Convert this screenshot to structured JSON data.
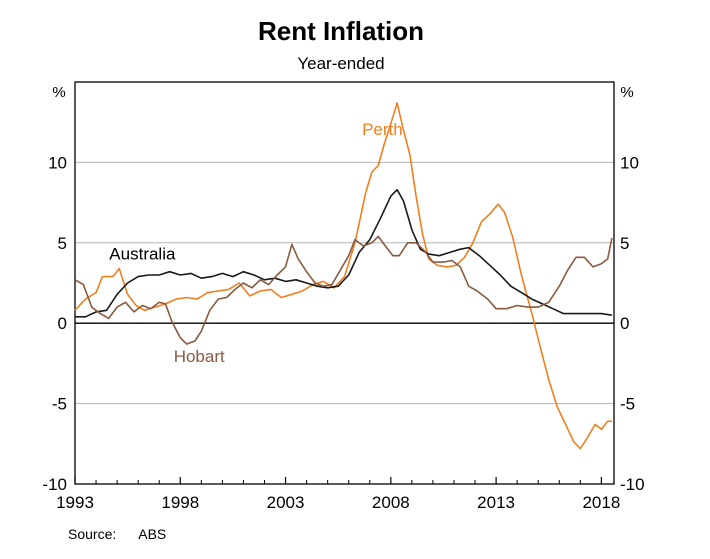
{
  "chart_data": {
    "type": "line",
    "title": "Rent Inflation",
    "subtitle": "Year-ended",
    "ylabel_left": "%",
    "ylabel_right": "%",
    "xlabel": "",
    "xlim": [
      1993,
      2018.6
    ],
    "ylim": [
      -10,
      15
    ],
    "x_ticks": [
      1993,
      1998,
      2003,
      2008,
      2013,
      2018
    ],
    "y_ticks": [
      -10,
      -5,
      0,
      5,
      10
    ],
    "grid": true,
    "source_label": "Source:",
    "source_value": "ABS",
    "series": [
      {
        "name": "Perth",
        "color": "#f07f20",
        "label_at": [
          2007.6,
          11.7
        ],
        "points": [
          [
            1993,
            0.8
          ],
          [
            1993.5,
            1.5
          ],
          [
            1994,
            1.9
          ],
          [
            1994.3,
            2.9
          ],
          [
            1994.8,
            2.9
          ],
          [
            1995.1,
            3.4
          ],
          [
            1995.5,
            1.8
          ],
          [
            1995.9,
            1.1
          ],
          [
            1996.3,
            0.8
          ],
          [
            1996.8,
            1.0
          ],
          [
            1997.3,
            1.2
          ],
          [
            1997.8,
            1.5
          ],
          [
            1998.3,
            1.6
          ],
          [
            1998.8,
            1.5
          ],
          [
            1999.3,
            1.9
          ],
          [
            1999.8,
            2.0
          ],
          [
            2000.3,
            2.1
          ],
          [
            2000.8,
            2.5
          ],
          [
            2001.3,
            1.7
          ],
          [
            2001.8,
            2.0
          ],
          [
            2002.3,
            2.1
          ],
          [
            2002.8,
            1.6
          ],
          [
            2003.3,
            1.8
          ],
          [
            2003.8,
            2.0
          ],
          [
            2004.3,
            2.4
          ],
          [
            2004.8,
            2.6
          ],
          [
            2005.3,
            2.2
          ],
          [
            2005.8,
            2.9
          ],
          [
            2006.3,
            5.0
          ],
          [
            2006.8,
            8.1
          ],
          [
            2007.1,
            9.4
          ],
          [
            2007.4,
            9.8
          ],
          [
            2007.7,
            11.2
          ],
          [
            2008.0,
            12.4
          ],
          [
            2008.3,
            13.7
          ],
          [
            2008.6,
            12.0
          ],
          [
            2008.9,
            10.5
          ],
          [
            2009.2,
            7.9
          ],
          [
            2009.5,
            5.6
          ],
          [
            2009.8,
            4.0
          ],
          [
            2010.2,
            3.6
          ],
          [
            2010.7,
            3.5
          ],
          [
            2011.1,
            3.6
          ],
          [
            2011.5,
            4.1
          ],
          [
            2011.9,
            5.0
          ],
          [
            2012.3,
            6.3
          ],
          [
            2012.7,
            6.8
          ],
          [
            2013.1,
            7.4
          ],
          [
            2013.4,
            6.9
          ],
          [
            2013.8,
            5.3
          ],
          [
            2014.2,
            3.0
          ],
          [
            2014.7,
            0.6
          ],
          [
            2015.1,
            -1.5
          ],
          [
            2015.5,
            -3.5
          ],
          [
            2015.9,
            -5.2
          ],
          [
            2016.3,
            -6.3
          ],
          [
            2016.7,
            -7.4
          ],
          [
            2017.0,
            -7.8
          ],
          [
            2017.3,
            -7.2
          ],
          [
            2017.7,
            -6.3
          ],
          [
            2018.0,
            -6.6
          ],
          [
            2018.3,
            -6.1
          ],
          [
            2018.5,
            -6.1
          ]
        ]
      },
      {
        "name": "Australia",
        "color": "#1a1a1a",
        "label_at": [
          1996.2,
          3.95
        ],
        "points": [
          [
            1993,
            0.4
          ],
          [
            1993.5,
            0.4
          ],
          [
            1994,
            0.7
          ],
          [
            1994.5,
            0.8
          ],
          [
            1995,
            1.8
          ],
          [
            1995.5,
            2.5
          ],
          [
            1996,
            2.9
          ],
          [
            1996.5,
            3.0
          ],
          [
            1997,
            3.0
          ],
          [
            1997.5,
            3.2
          ],
          [
            1998,
            3.0
          ],
          [
            1998.5,
            3.1
          ],
          [
            1999,
            2.8
          ],
          [
            1999.5,
            2.9
          ],
          [
            2000,
            3.1
          ],
          [
            2000.5,
            2.9
          ],
          [
            2001,
            3.2
          ],
          [
            2001.5,
            3.0
          ],
          [
            2002,
            2.7
          ],
          [
            2002.5,
            2.8
          ],
          [
            2003,
            2.6
          ],
          [
            2003.5,
            2.7
          ],
          [
            2004,
            2.5
          ],
          [
            2004.5,
            2.3
          ],
          [
            2005,
            2.2
          ],
          [
            2005.5,
            2.3
          ],
          [
            2006,
            3.0
          ],
          [
            2006.5,
            4.4
          ],
          [
            2007,
            5.2
          ],
          [
            2007.5,
            6.5
          ],
          [
            2008.0,
            7.9
          ],
          [
            2008.3,
            8.3
          ],
          [
            2008.6,
            7.6
          ],
          [
            2009.0,
            5.8
          ],
          [
            2009.4,
            4.6
          ],
          [
            2009.8,
            4.3
          ],
          [
            2010.3,
            4.2
          ],
          [
            2010.8,
            4.4
          ],
          [
            2011.3,
            4.6
          ],
          [
            2011.7,
            4.7
          ],
          [
            2012.2,
            4.2
          ],
          [
            2012.7,
            3.6
          ],
          [
            2013.2,
            3.0
          ],
          [
            2013.7,
            2.3
          ],
          [
            2014.2,
            1.9
          ],
          [
            2014.7,
            1.5
          ],
          [
            2015.2,
            1.2
          ],
          [
            2015.7,
            0.9
          ],
          [
            2016.2,
            0.6
          ],
          [
            2016.7,
            0.6
          ],
          [
            2017.2,
            0.6
          ],
          [
            2017.7,
            0.6
          ],
          [
            2018.0,
            0.6
          ],
          [
            2018.5,
            0.5
          ]
        ]
      },
      {
        "name": "Hobart",
        "color": "#8a5a40",
        "label_at": [
          1998.9,
          -2.4
        ],
        "points": [
          [
            1993,
            2.7
          ],
          [
            1993.4,
            2.4
          ],
          [
            1993.8,
            1.0
          ],
          [
            1994.2,
            0.6
          ],
          [
            1994.6,
            0.3
          ],
          [
            1995.0,
            1.0
          ],
          [
            1995.4,
            1.3
          ],
          [
            1995.8,
            0.7
          ],
          [
            1996.2,
            1.1
          ],
          [
            1996.6,
            0.9
          ],
          [
            1997.0,
            1.3
          ],
          [
            1997.3,
            1.2
          ],
          [
            1997.6,
            0.1
          ],
          [
            1998.0,
            -0.9
          ],
          [
            1998.3,
            -1.3
          ],
          [
            1998.7,
            -1.1
          ],
          [
            1999.0,
            -0.5
          ],
          [
            1999.4,
            0.8
          ],
          [
            1999.8,
            1.5
          ],
          [
            2000.2,
            1.6
          ],
          [
            2000.6,
            2.1
          ],
          [
            2001.0,
            2.5
          ],
          [
            2001.4,
            2.2
          ],
          [
            2001.8,
            2.7
          ],
          [
            2002.2,
            2.4
          ],
          [
            2002.6,
            3.0
          ],
          [
            2003.0,
            3.5
          ],
          [
            2003.3,
            4.9
          ],
          [
            2003.6,
            4.0
          ],
          [
            2004.0,
            3.2
          ],
          [
            2004.4,
            2.5
          ],
          [
            2004.8,
            2.3
          ],
          [
            2005.2,
            2.4
          ],
          [
            2005.6,
            3.3
          ],
          [
            2006.0,
            4.2
          ],
          [
            2006.3,
            5.2
          ],
          [
            2006.7,
            4.8
          ],
          [
            2007.1,
            5.0
          ],
          [
            2007.4,
            5.4
          ],
          [
            2007.8,
            4.7
          ],
          [
            2008.1,
            4.2
          ],
          [
            2008.4,
            4.2
          ],
          [
            2008.8,
            5.0
          ],
          [
            2009.2,
            5.0
          ],
          [
            2009.6,
            4.5
          ],
          [
            2010.0,
            3.8
          ],
          [
            2010.5,
            3.8
          ],
          [
            2010.9,
            3.9
          ],
          [
            2011.3,
            3.5
          ],
          [
            2011.7,
            2.3
          ],
          [
            2012.1,
            2.0
          ],
          [
            2012.6,
            1.5
          ],
          [
            2013.0,
            0.9
          ],
          [
            2013.5,
            0.9
          ],
          [
            2014.0,
            1.1
          ],
          [
            2014.5,
            1.0
          ],
          [
            2015.0,
            1.0
          ],
          [
            2015.5,
            1.3
          ],
          [
            2016.0,
            2.3
          ],
          [
            2016.4,
            3.3
          ],
          [
            2016.8,
            4.1
          ],
          [
            2017.2,
            4.1
          ],
          [
            2017.6,
            3.5
          ],
          [
            2018.0,
            3.7
          ],
          [
            2018.3,
            4.0
          ],
          [
            2018.5,
            5.3
          ]
        ]
      }
    ]
  }
}
